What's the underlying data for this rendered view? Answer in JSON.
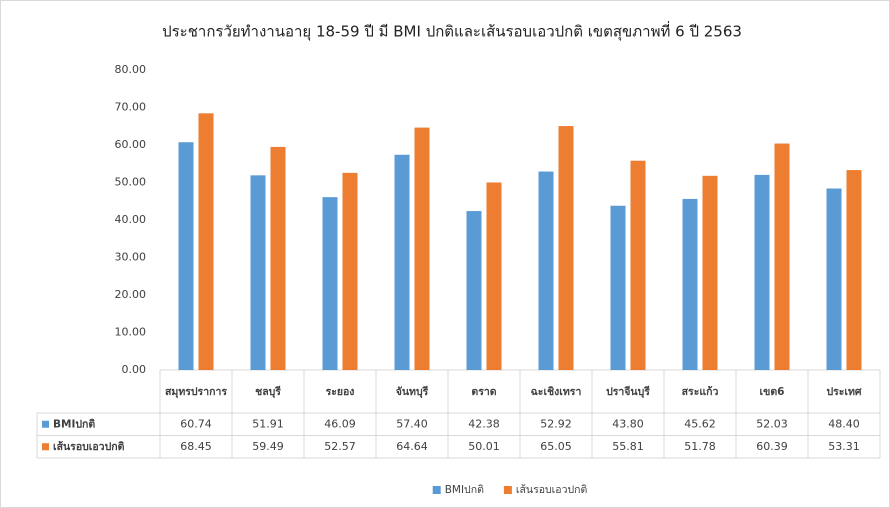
{
  "chart_data": {
    "type": "bar",
    "title": "ประชากรวัยทำงานอายุ 18-59 ปี มี BMI ปกติและเส้นรอบเอวปกติ เขตสุขภาพที่ 6 ปี 2563",
    "categories": [
      "สมุทรปราการ",
      "ชลบุรี",
      "ระยอง",
      "จันทบุรี",
      "ตราด",
      "ฉะเชิงเทรา",
      "ปราจีนบุรี",
      "สระแก้ว",
      "เขต6",
      "ประเทศ"
    ],
    "series": [
      {
        "name": "BMIปกติ",
        "color": "#5b9bd5",
        "values": [
          60.74,
          51.91,
          46.09,
          57.4,
          42.38,
          52.92,
          43.8,
          45.62,
          52.03,
          48.4
        ],
        "value_labels": [
          "60.74",
          "51.91",
          "46.09",
          "57.40",
          "42.38",
          "52.92",
          "43.80",
          "45.62",
          "52.03",
          "48.40"
        ]
      },
      {
        "name": "เส้นรอบเอวปกติ",
        "color": "#ed7d31",
        "values": [
          68.45,
          59.49,
          52.57,
          64.64,
          50.01,
          65.05,
          55.81,
          51.78,
          60.39,
          53.31
        ],
        "value_labels": [
          "68.45",
          "59.49",
          "52.57",
          "64.64",
          "50.01",
          "65.05",
          "55.81",
          "51.78",
          "60.39",
          "53.31"
        ]
      }
    ],
    "ylim": [
      0,
      80
    ],
    "yticks": [
      {
        "value": 0,
        "label": "0.00"
      },
      {
        "value": 10,
        "label": "10.00"
      },
      {
        "value": 20,
        "label": "20.00"
      },
      {
        "value": 30,
        "label": "30.00"
      },
      {
        "value": 40,
        "label": "40.00"
      },
      {
        "value": 50,
        "label": "50.00"
      },
      {
        "value": 60,
        "label": "60.00"
      },
      {
        "value": 70,
        "label": "70.00"
      },
      {
        "value": 80,
        "label": "80.00"
      }
    ],
    "legend": "bottom"
  }
}
